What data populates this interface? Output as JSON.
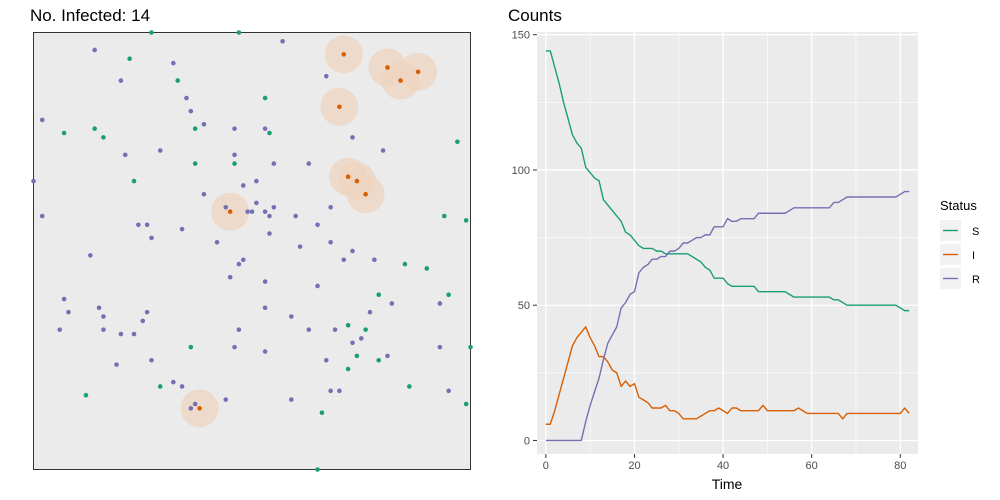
{
  "left_panel": {
    "title": "No. Infected: 14",
    "colors": {
      "S": "#1b9e77",
      "I": "#d95f02",
      "R": "#7570b3",
      "panel": "#ebebeb",
      "halo": "#edd4c0"
    },
    "chart_data": {
      "type": "scatter",
      "xlim": [
        0,
        1
      ],
      "ylim": [
        0,
        1
      ],
      "points": {
        "I": [
          [
            0.71,
            0.95
          ],
          [
            0.81,
            0.92
          ],
          [
            0.88,
            0.91
          ],
          [
            0.84,
            0.89
          ],
          [
            0.7,
            0.83
          ],
          [
            0.72,
            0.67
          ],
          [
            0.74,
            0.66
          ],
          [
            0.76,
            0.63
          ],
          [
            0.45,
            0.59
          ],
          [
            0.38,
            0.14
          ]
        ],
        "S": [
          [
            0.27,
            1.0
          ],
          [
            0.47,
            1.0
          ],
          [
            0.22,
            0.94
          ],
          [
            0.33,
            0.89
          ],
          [
            0.53,
            0.85
          ],
          [
            0.07,
            0.77
          ],
          [
            0.14,
            0.78
          ],
          [
            0.16,
            0.76
          ],
          [
            0.37,
            0.78
          ],
          [
            0.54,
            0.77
          ],
          [
            0.97,
            0.75
          ],
          [
            0.37,
            0.7
          ],
          [
            0.46,
            0.7
          ],
          [
            0.23,
            0.66
          ],
          [
            0.94,
            0.58
          ],
          [
            0.99,
            0.57
          ],
          [
            0.85,
            0.47
          ],
          [
            0.9,
            0.46
          ],
          [
            0.79,
            0.4
          ],
          [
            0.95,
            0.4
          ],
          [
            0.72,
            0.33
          ],
          [
            0.76,
            0.32
          ],
          [
            1.0,
            0.28
          ],
          [
            0.36,
            0.28
          ],
          [
            0.74,
            0.26
          ],
          [
            0.79,
            0.25
          ],
          [
            0.72,
            0.23
          ],
          [
            0.29,
            0.19
          ],
          [
            0.86,
            0.19
          ],
          [
            0.12,
            0.17
          ],
          [
            0.66,
            0.13
          ],
          [
            0.99,
            0.15
          ],
          [
            0.65,
            0.0
          ]
        ],
        "R": [
          [
            0.14,
            0.96
          ],
          [
            0.57,
            0.98
          ],
          [
            0.32,
            0.93
          ],
          [
            0.2,
            0.89
          ],
          [
            0.35,
            0.85
          ],
          [
            0.36,
            0.82
          ],
          [
            0.67,
            0.9
          ],
          [
            0.02,
            0.8
          ],
          [
            0.39,
            0.79
          ],
          [
            0.46,
            0.78
          ],
          [
            0.53,
            0.78
          ],
          [
            0.21,
            0.72
          ],
          [
            0.29,
            0.73
          ],
          [
            0.46,
            0.72
          ],
          [
            0.55,
            0.7
          ],
          [
            0.63,
            0.7
          ],
          [
            0.73,
            0.76
          ],
          [
            0.8,
            0.73
          ],
          [
            0.0,
            0.66
          ],
          [
            0.51,
            0.66
          ],
          [
            0.48,
            0.65
          ],
          [
            0.39,
            0.63
          ],
          [
            0.44,
            0.6
          ],
          [
            0.49,
            0.59
          ],
          [
            0.5,
            0.59
          ],
          [
            0.51,
            0.61
          ],
          [
            0.53,
            0.59
          ],
          [
            0.54,
            0.58
          ],
          [
            0.55,
            0.6
          ],
          [
            0.6,
            0.58
          ],
          [
            0.68,
            0.6
          ],
          [
            0.02,
            0.58
          ],
          [
            0.24,
            0.56
          ],
          [
            0.26,
            0.56
          ],
          [
            0.27,
            0.53
          ],
          [
            0.34,
            0.55
          ],
          [
            0.42,
            0.52
          ],
          [
            0.54,
            0.54
          ],
          [
            0.61,
            0.51
          ],
          [
            0.65,
            0.56
          ],
          [
            0.68,
            0.52
          ],
          [
            0.71,
            0.48
          ],
          [
            0.73,
            0.5
          ],
          [
            0.78,
            0.48
          ],
          [
            0.13,
            0.49
          ],
          [
            0.47,
            0.47
          ],
          [
            0.48,
            0.48
          ],
          [
            0.45,
            0.44
          ],
          [
            0.53,
            0.43
          ],
          [
            0.65,
            0.42
          ],
          [
            0.07,
            0.39
          ],
          [
            0.15,
            0.37
          ],
          [
            0.06,
            0.32
          ],
          [
            0.16,
            0.35
          ],
          [
            0.08,
            0.36
          ],
          [
            0.25,
            0.34
          ],
          [
            0.26,
            0.36
          ],
          [
            0.53,
            0.37
          ],
          [
            0.59,
            0.35
          ],
          [
            0.2,
            0.31
          ],
          [
            0.23,
            0.31
          ],
          [
            0.47,
            0.32
          ],
          [
            0.63,
            0.32
          ],
          [
            0.16,
            0.32
          ],
          [
            0.69,
            0.32
          ],
          [
            0.75,
            0.3
          ],
          [
            0.77,
            0.36
          ],
          [
            0.82,
            0.38
          ],
          [
            0.93,
            0.38
          ],
          [
            0.46,
            0.28
          ],
          [
            0.53,
            0.27
          ],
          [
            0.67,
            0.25
          ],
          [
            0.73,
            0.29
          ],
          [
            0.81,
            0.26
          ],
          [
            0.93,
            0.28
          ],
          [
            0.27,
            0.25
          ],
          [
            0.19,
            0.24
          ],
          [
            0.34,
            0.19
          ],
          [
            0.32,
            0.2
          ],
          [
            0.36,
            0.14
          ],
          [
            0.37,
            0.15
          ],
          [
            0.68,
            0.18
          ],
          [
            0.7,
            0.18
          ],
          [
            0.44,
            0.16
          ],
          [
            0.59,
            0.16
          ],
          [
            0.95,
            0.18
          ]
        ]
      },
      "halos": [
        [
          0.71,
          0.95
        ],
        [
          0.81,
          0.92
        ],
        [
          0.88,
          0.91
        ],
        [
          0.84,
          0.89
        ],
        [
          0.7,
          0.83
        ],
        [
          0.72,
          0.67
        ],
        [
          0.74,
          0.66
        ],
        [
          0.76,
          0.63
        ],
        [
          0.45,
          0.59
        ],
        [
          0.38,
          0.14
        ]
      ]
    }
  },
  "right_panel": {
    "title": "Counts",
    "chart_data": {
      "type": "line",
      "xlabel": "Time",
      "ylabel": "",
      "xlim": [
        -2,
        84
      ],
      "ylim": [
        -5,
        151
      ],
      "xticks": [
        0,
        20,
        40,
        60,
        80
      ],
      "yticks": [
        0,
        50,
        100,
        150
      ],
      "x": [
        0,
        1,
        2,
        3,
        4,
        5,
        6,
        7,
        8,
        9,
        10,
        11,
        12,
        13,
        14,
        15,
        16,
        17,
        18,
        19,
        20,
        21,
        22,
        23,
        24,
        25,
        26,
        27,
        28,
        29,
        30,
        31,
        32,
        33,
        34,
        35,
        36,
        37,
        38,
        39,
        40,
        41,
        42,
        43,
        44,
        45,
        46,
        47,
        48,
        49,
        50,
        51,
        52,
        53,
        54,
        55,
        56,
        57,
        58,
        59,
        60,
        61,
        62,
        63,
        64,
        65,
        66,
        67,
        68,
        69,
        70,
        71,
        72,
        73,
        74,
        75,
        76,
        77,
        78,
        79,
        80,
        81,
        82
      ],
      "series": [
        {
          "name": "S",
          "color": "#1b9e77",
          "values": [
            144,
            144,
            138,
            132,
            125,
            119,
            113,
            110,
            108,
            101,
            99,
            97,
            96,
            89,
            87,
            85,
            83,
            81,
            77,
            76,
            74,
            72,
            71,
            71,
            71,
            70,
            70,
            69,
            69,
            69,
            69,
            69,
            69,
            68,
            67,
            66,
            64,
            63,
            60,
            60,
            60,
            58,
            57,
            57,
            57,
            57,
            57,
            57,
            55,
            55,
            55,
            55,
            55,
            55,
            55,
            54,
            53,
            53,
            53,
            53,
            53,
            53,
            53,
            53,
            53,
            52,
            52,
            51,
            50,
            50,
            50,
            50,
            50,
            50,
            50,
            50,
            50,
            50,
            50,
            50,
            49,
            48,
            48
          ]
        },
        {
          "name": "I",
          "color": "#d95f02",
          "values": [
            6,
            6,
            11,
            17,
            23,
            29,
            35,
            38,
            40,
            42,
            38,
            35,
            31,
            31,
            29,
            26,
            25,
            20,
            22,
            20,
            21,
            16,
            15,
            14,
            12,
            12,
            12,
            13,
            11,
            11,
            10,
            8,
            8,
            8,
            8,
            9,
            10,
            11,
            11,
            12,
            11,
            10,
            12,
            12,
            11,
            11,
            11,
            11,
            11,
            13,
            11,
            11,
            11,
            11,
            11,
            11,
            11,
            12,
            11,
            10,
            10,
            10,
            10,
            10,
            10,
            10,
            10,
            8,
            10,
            10,
            10,
            10,
            10,
            10,
            10,
            10,
            10,
            10,
            10,
            10,
            10,
            12,
            10
          ]
        },
        {
          "name": "R",
          "color": "#7570b3",
          "values": [
            0,
            0,
            0,
            0,
            0,
            0,
            0,
            0,
            0,
            7,
            13,
            18,
            23,
            30,
            36,
            39,
            42,
            49,
            51,
            54,
            55,
            62,
            64,
            65,
            67,
            67,
            68,
            68,
            70,
            70,
            71,
            73,
            73,
            74,
            75,
            75,
            76,
            76,
            79,
            79,
            79,
            82,
            81,
            81,
            82,
            82,
            82,
            82,
            84,
            84,
            84,
            84,
            84,
            84,
            84,
            85,
            86,
            86,
            86,
            86,
            86,
            86,
            86,
            86,
            86,
            88,
            88,
            89,
            90,
            90,
            90,
            90,
            90,
            90,
            90,
            90,
            90,
            90,
            90,
            90,
            91,
            92,
            92
          ]
        }
      ],
      "legend": {
        "title": "Status",
        "position": "right",
        "entries": [
          "S",
          "I",
          "R"
        ]
      },
      "grid": true
    }
  }
}
